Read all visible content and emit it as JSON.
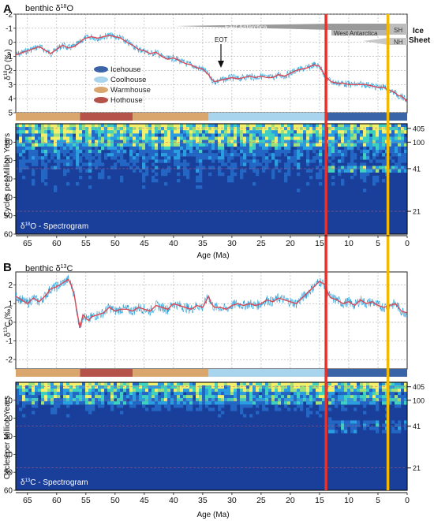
{
  "figure": {
    "panel_a_letter": "A",
    "panel_b_letter": "B",
    "age_axis_label": "Age (Ma)",
    "age_ticks": [
      "65",
      "60",
      "55",
      "50",
      "45",
      "40",
      "35",
      "30",
      "25",
      "20",
      "15",
      "10",
      "5",
      "0"
    ],
    "vertical_markers": [
      {
        "age": 13.9,
        "color": "#e8312a"
      },
      {
        "age": 3.3,
        "color": "#f5b800"
      }
    ]
  },
  "climate_states": {
    "legend": [
      {
        "label": "Icehouse",
        "color": "#3a64a8"
      },
      {
        "label": "Coolhouse",
        "color": "#a8d4ee"
      },
      {
        "label": "Warmhouse",
        "color": "#d9a66e"
      },
      {
        "label": "Hothouse",
        "color": "#b5524a"
      }
    ],
    "bar_segments": [
      {
        "state": "Warmhouse",
        "from": 67,
        "to": 56
      },
      {
        "state": "Hothouse",
        "from": 56,
        "to": 47
      },
      {
        "state": "Warmhouse",
        "from": 47,
        "to": 34
      },
      {
        "state": "Coolhouse",
        "from": 34,
        "to": 13.9
      },
      {
        "state": "Icehouse",
        "from": 13.9,
        "to": 0
      }
    ]
  },
  "ice_sheet": {
    "header_line1": "Ice",
    "header_line2": "Sheet",
    "east_label": "East Antarctica",
    "west_label": "West Antarctica",
    "sh_label": "SH",
    "nh_label": "NH",
    "eot_label": "EOT"
  },
  "chart_data": [
    {
      "type": "line",
      "title": "benthic δ18O",
      "title_main": "benthic δ",
      "title_super": "18",
      "title_tail": "O",
      "ylabel_main": "δ",
      "ylabel_super": "18",
      "ylabel_tail": "O (‰)",
      "y_inverted": true,
      "ylim": [
        -2,
        5
      ],
      "yticks": [
        "-2",
        "-1",
        "0",
        "1",
        "2",
        "3",
        "4",
        "5"
      ],
      "xlim": [
        67,
        0
      ],
      "grid": true,
      "legend_position": "left",
      "x": [
        67,
        65,
        63,
        61,
        60,
        59,
        58,
        57,
        56,
        55.5,
        55,
        54,
        53,
        52,
        51,
        50,
        49,
        48,
        47,
        46,
        45,
        44,
        43,
        42,
        41,
        40,
        39,
        38,
        37,
        36,
        35,
        34,
        33.5,
        33,
        32,
        31,
        30,
        29,
        28,
        27,
        26,
        25,
        24,
        23,
        22,
        21,
        20,
        19,
        18,
        17,
        16,
        15,
        14,
        13.5,
        13,
        12,
        11,
        10,
        9,
        8,
        7,
        6,
        5,
        4,
        3.5,
        3,
        2,
        1.5,
        1,
        0.5,
        0
      ],
      "y": [
        0.9,
        0.6,
        0.3,
        0.8,
        0.5,
        0.2,
        0.4,
        0.3,
        0.0,
        -0.2,
        -0.3,
        -0.4,
        -0.3,
        -0.4,
        -0.5,
        -0.4,
        -0.3,
        0.0,
        0.2,
        0.5,
        0.6,
        0.8,
        0.7,
        1.0,
        1.2,
        1.1,
        1.3,
        1.5,
        1.6,
        1.8,
        1.9,
        2.3,
        2.6,
        2.8,
        2.7,
        2.6,
        2.5,
        2.6,
        2.5,
        2.4,
        2.5,
        2.4,
        2.5,
        2.5,
        2.3,
        2.4,
        2.2,
        2.0,
        1.9,
        1.8,
        1.6,
        1.7,
        2.4,
        2.6,
        2.8,
        2.9,
        2.9,
        3.0,
        3.0,
        3.0,
        3.0,
        3.1,
        3.2,
        3.2,
        3.3,
        3.4,
        3.6,
        3.8,
        3.8,
        4.0,
        4.2
      ]
    },
    {
      "type": "heatmap",
      "title": "δ18O - Spectrogram",
      "title_main": "δ",
      "title_super": "18",
      "title_tail": "O - Spectrogram",
      "ylabel": "Cycles per Million Years",
      "ylim": [
        0,
        60
      ],
      "yticks": [
        "10",
        "20",
        "30",
        "40",
        "50",
        "60"
      ],
      "xlim": [
        67,
        0
      ],
      "cycle_lines": [
        {
          "label": "405",
          "cycles": 2.5
        },
        {
          "label": "100",
          "cycles": 10
        },
        {
          "label": "41",
          "cycles": 24.4
        },
        {
          "label": "21",
          "cycles": 47.6
        }
      ]
    },
    {
      "type": "line",
      "title": "benthic δ13C",
      "title_main": "benthic δ",
      "title_super": "13",
      "title_tail": "C",
      "ylabel_main": "δ",
      "ylabel_super": "13",
      "ylabel_tail": "C (‰)",
      "y_inverted": false,
      "ylim": [
        -2.5,
        2.7
      ],
      "yticks": [
        "2",
        "1",
        "0",
        "-1",
        "-2"
      ],
      "xlim": [
        67,
        0
      ],
      "grid": true,
      "x": [
        67,
        66,
        65,
        64,
        63,
        62,
        61,
        60,
        59,
        58,
        57.5,
        57,
        56.5,
        56,
        55.5,
        55,
        54.5,
        54,
        53,
        52,
        51,
        50,
        49,
        48,
        47,
        46,
        45,
        44,
        43,
        42,
        41,
        40,
        39,
        38,
        37,
        36,
        35,
        34,
        33.5,
        33,
        32,
        31,
        30,
        29,
        28,
        27,
        26,
        25,
        24,
        23,
        22,
        21,
        20,
        19,
        18,
        17,
        16,
        15,
        14,
        13.5,
        13,
        12,
        11,
        10,
        9,
        8,
        7,
        6,
        5,
        4,
        3,
        2,
        1,
        0
      ],
      "y": [
        1.4,
        1.2,
        1.0,
        1.3,
        1.1,
        1.4,
        1.8,
        1.9,
        2.1,
        2.3,
        2.0,
        1.5,
        0.5,
        -0.3,
        0.4,
        0.2,
        0.1,
        0.3,
        0.4,
        0.5,
        0.8,
        0.6,
        0.7,
        0.7,
        0.6,
        0.8,
        0.7,
        0.6,
        0.9,
        0.8,
        0.7,
        1.0,
        0.9,
        0.8,
        0.7,
        0.9,
        0.8,
        1.4,
        1.0,
        0.8,
        0.8,
        0.7,
        0.9,
        1.0,
        0.9,
        1.0,
        0.9,
        1.0,
        1.2,
        1.1,
        1.3,
        1.2,
        1.1,
        1.0,
        1.3,
        1.6,
        1.9,
        2.2,
        2.0,
        1.5,
        1.3,
        1.2,
        1.0,
        1.1,
        0.9,
        1.2,
        1.0,
        1.1,
        0.9,
        0.8,
        0.9,
        1.0,
        0.6,
        0.5
      ]
    },
    {
      "type": "heatmap",
      "title": "δ13C - Spectrogram",
      "title_main": "δ",
      "title_super": "13",
      "title_tail": "C - Spectrogram",
      "ylabel": "Cycles per Million Years",
      "ylim": [
        0,
        60
      ],
      "yticks": [
        "10",
        "20",
        "30",
        "40",
        "50",
        "60"
      ],
      "xlim": [
        67,
        0
      ],
      "cycle_lines": [
        {
          "label": "405",
          "cycles": 2.5
        },
        {
          "label": "100",
          "cycles": 10
        },
        {
          "label": "41",
          "cycles": 24.4
        },
        {
          "label": "21",
          "cycles": 47.6
        }
      ]
    }
  ]
}
